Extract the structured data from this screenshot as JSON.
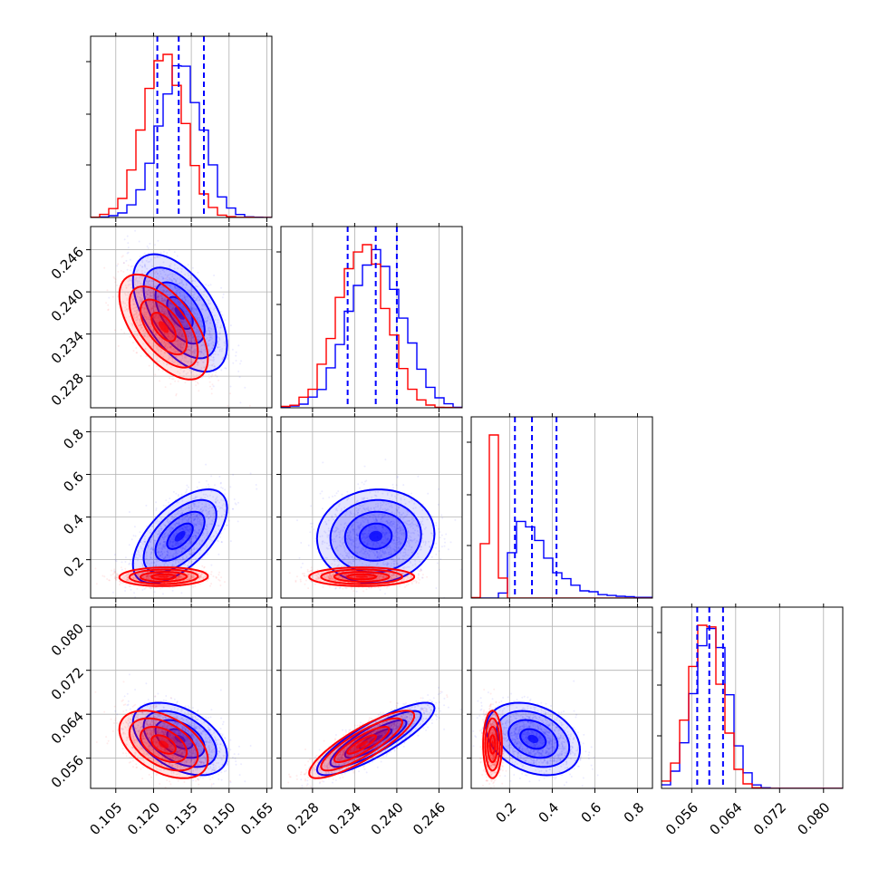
{
  "chart_data": {
    "type": "corner",
    "parameters": [
      {
        "range": [
          0.095,
          0.167
        ],
        "ticks": [
          0.105,
          0.12,
          0.135,
          0.15,
          0.165
        ],
        "tick_labels": [
          "0.105",
          "0.120",
          "0.135",
          "0.150",
          "0.165"
        ]
      },
      {
        "range": [
          0.2235,
          0.2493
        ],
        "ticks": [
          0.228,
          0.234,
          0.24,
          0.246
        ],
        "tick_labels": [
          "0.228",
          "0.234",
          "0.240",
          "0.246"
        ]
      },
      {
        "range": [
          0.02,
          0.87
        ],
        "ticks": [
          0.2,
          0.4,
          0.6,
          0.8
        ],
        "tick_labels": [
          "0.2",
          "0.4",
          "0.6",
          "0.8"
        ]
      },
      {
        "range": [
          0.0505,
          0.0835
        ],
        "ticks": [
          0.056,
          0.064,
          0.072,
          0.08
        ],
        "tick_labels": [
          "0.056",
          "0.064",
          "0.072",
          "0.080"
        ]
      }
    ],
    "grid": true,
    "series": [
      {
        "color": "#0000ff",
        "mean": [
          0.1305,
          0.237,
          0.31,
          0.0595
        ],
        "std": [
          0.0085,
          0.0038,
          0.1,
          0.003
        ],
        "quantiles": [
          [
            0.1215,
            0.13,
            0.14
          ],
          [
            0.233,
            0.237,
            0.24
          ],
          [
            0.225,
            0.305,
            0.42
          ],
          [
            0.057,
            0.0592,
            0.0617
          ]
        ],
        "corr": [
          [
            1,
            -0.55,
            0.6,
            -0.45
          ],
          [
            -0.55,
            1,
            0.05,
            0.85
          ],
          [
            0.6,
            0.05,
            1,
            -0.3
          ],
          [
            -0.45,
            0.85,
            -0.3,
            1
          ]
        ]
      },
      {
        "color": "#ff0000",
        "mean": [
          0.124,
          0.235,
          0.12,
          0.0585
        ],
        "std": [
          0.008,
          0.0034,
          0.02,
          0.0028
        ],
        "quantiles": [],
        "corr": [
          [
            1,
            -0.6,
            0.05,
            -0.45
          ],
          [
            -0.6,
            1,
            0.0,
            0.85
          ],
          [
            0.05,
            0.0,
            1,
            0.0
          ],
          [
            -0.45,
            0.85,
            0.0,
            1
          ]
        ]
      }
    ],
    "diag_hist_max": [
      [
        0.93,
        1.0
      ],
      [
        0.97,
        1.0
      ],
      [
        0.47,
        1.0
      ],
      [
        0.98,
        1.0
      ]
    ]
  }
}
